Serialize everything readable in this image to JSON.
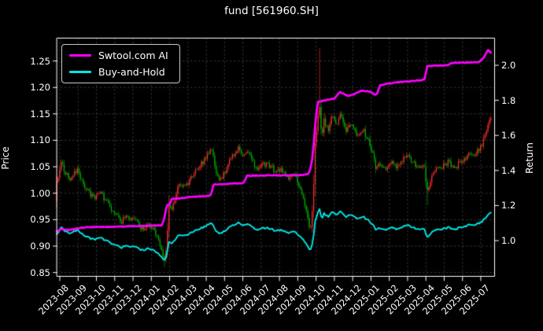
{
  "title": "fund [561960.SH]",
  "chart_data": {
    "type": "candlestick+line",
    "title": "fund [561960.SH]",
    "background": "#000000",
    "text_color": "#ffffff",
    "grid": true,
    "grid_color": "rgba(170,170,170,0.45)",
    "left_axis": {
      "label": "Price",
      "ticks": [
        0.85,
        0.9,
        0.95,
        1.0,
        1.05,
        1.1,
        1.15,
        1.2,
        1.25
      ],
      "range": [
        0.842,
        1.294
      ]
    },
    "right_axis": {
      "label": "Return",
      "ticks": [
        1.0,
        1.2,
        1.4,
        1.6,
        1.8,
        2.0
      ],
      "range": [
        0.794,
        2.157
      ]
    },
    "x_tick_labels": [
      "2023-08",
      "2023-09",
      "2023-10",
      "2023-11",
      "2023-12",
      "2024-01",
      "2024-02",
      "2024-03",
      "2024-04",
      "2024-05",
      "2024-06",
      "2024-07",
      "2024-08",
      "2024-09",
      "2024-10",
      "2024-11",
      "2024-12",
      "2025-01",
      "2025-02",
      "2025-03",
      "2025-04",
      "2025-05",
      "2025-06",
      "2025-07"
    ],
    "x_range_months": [
      -0.17,
      23.55
    ],
    "legend": [
      {
        "label": "Swtool.com AI",
        "color": "#ff00ff"
      },
      {
        "label": "Buy-and-Hold",
        "color": "#00e8e8"
      }
    ],
    "series": {
      "ai_return_anchors": [
        [
          -0.17,
          1.05
        ],
        [
          0.08,
          1.068
        ],
        [
          0.5,
          1.06
        ],
        [
          0.9,
          1.068
        ],
        [
          1.3,
          1.075
        ],
        [
          2.2,
          1.078
        ],
        [
          3.2,
          1.08
        ],
        [
          4.2,
          1.083
        ],
        [
          5.2,
          1.086
        ],
        [
          5.6,
          1.088
        ],
        [
          5.72,
          1.135
        ],
        [
          5.85,
          1.205
        ],
        [
          6.0,
          1.208
        ],
        [
          6.12,
          1.238
        ],
        [
          6.7,
          1.243
        ],
        [
          7.2,
          1.25
        ],
        [
          8.1,
          1.255
        ],
        [
          8.25,
          1.258
        ],
        [
          8.4,
          1.32
        ],
        [
          9.5,
          1.325
        ],
        [
          10.05,
          1.33
        ],
        [
          10.22,
          1.37
        ],
        [
          11.2,
          1.372
        ],
        [
          12.3,
          1.372
        ],
        [
          13.3,
          1.374
        ],
        [
          13.6,
          1.38
        ],
        [
          13.75,
          1.43
        ],
        [
          13.88,
          1.56
        ],
        [
          13.98,
          1.7
        ],
        [
          14.1,
          1.79
        ],
        [
          14.5,
          1.8
        ],
        [
          15.0,
          1.812
        ],
        [
          15.3,
          1.848
        ],
        [
          15.75,
          1.824
        ],
        [
          16.1,
          1.836
        ],
        [
          16.5,
          1.856
        ],
        [
          16.95,
          1.848
        ],
        [
          17.3,
          1.828
        ],
        [
          17.48,
          1.886
        ],
        [
          18.2,
          1.9
        ],
        [
          19.2,
          1.91
        ],
        [
          19.95,
          1.918
        ],
        [
          20.05,
          1.995
        ],
        [
          21.2,
          2.0
        ],
        [
          21.45,
          2.014
        ],
        [
          22.85,
          2.016
        ],
        [
          23.15,
          2.04
        ],
        [
          23.38,
          2.088
        ],
        [
          23.55,
          2.072
        ]
      ],
      "price_close_anchors": [
        [
          -0.17,
          1.02
        ],
        [
          0.08,
          1.058
        ],
        [
          0.3,
          1.035
        ],
        [
          0.6,
          1.028
        ],
        [
          0.95,
          1.045
        ],
        [
          1.3,
          1.015
        ],
        [
          1.6,
          1.0
        ],
        [
          1.9,
          0.99
        ],
        [
          2.2,
          1.0
        ],
        [
          2.5,
          0.988
        ],
        [
          2.8,
          0.97
        ],
        [
          3.1,
          0.958
        ],
        [
          3.35,
          0.945
        ],
        [
          3.6,
          0.96
        ],
        [
          3.9,
          0.952
        ],
        [
          4.2,
          0.945
        ],
        [
          4.5,
          0.932
        ],
        [
          4.8,
          0.94
        ],
        [
          5.1,
          0.93
        ],
        [
          5.35,
          0.915
        ],
        [
          5.55,
          0.895
        ],
        [
          5.7,
          0.872
        ],
        [
          5.82,
          0.892
        ],
        [
          5.95,
          0.975
        ],
        [
          6.15,
          0.972
        ],
        [
          6.5,
          1.02
        ],
        [
          6.8,
          1.01
        ],
        [
          7.2,
          1.03
        ],
        [
          7.6,
          1.05
        ],
        [
          7.9,
          1.062
        ],
        [
          8.3,
          1.085
        ],
        [
          8.55,
          1.032
        ],
        [
          8.85,
          1.028
        ],
        [
          9.15,
          1.052
        ],
        [
          9.45,
          1.07
        ],
        [
          9.7,
          1.085
        ],
        [
          10.0,
          1.075
        ],
        [
          10.25,
          1.08
        ],
        [
          10.55,
          1.058
        ],
        [
          10.85,
          1.048
        ],
        [
          11.15,
          1.055
        ],
        [
          11.5,
          1.052
        ],
        [
          11.8,
          1.04
        ],
        [
          12.1,
          1.045
        ],
        [
          12.45,
          1.028
        ],
        [
          12.75,
          1.035
        ],
        [
          13.05,
          1.018
        ],
        [
          13.35,
          0.988
        ],
        [
          13.55,
          0.948
        ],
        [
          13.68,
          0.93
        ],
        [
          13.82,
          0.975
        ],
        [
          13.96,
          1.1
        ],
        [
          14.18,
          1.17
        ],
        [
          14.3,
          1.1
        ],
        [
          14.45,
          1.14
        ],
        [
          14.65,
          1.118
        ],
        [
          14.85,
          1.152
        ],
        [
          15.05,
          1.128
        ],
        [
          15.35,
          1.148
        ],
        [
          15.65,
          1.118
        ],
        [
          15.95,
          1.132
        ],
        [
          16.25,
          1.112
        ],
        [
          16.55,
          1.12
        ],
        [
          16.85,
          1.098
        ],
        [
          17.05,
          1.082
        ],
        [
          17.25,
          1.048
        ],
        [
          17.55,
          1.056
        ],
        [
          17.85,
          1.048
        ],
        [
          18.15,
          1.06
        ],
        [
          18.45,
          1.048
        ],
        [
          18.75,
          1.065
        ],
        [
          19.0,
          1.075
        ],
        [
          19.3,
          1.058
        ],
        [
          19.6,
          1.048
        ],
        [
          19.9,
          1.055
        ],
        [
          20.08,
          1.002
        ],
        [
          20.35,
          1.04
        ],
        [
          20.65,
          1.046
        ],
        [
          20.95,
          1.052
        ],
        [
          21.25,
          1.06
        ],
        [
          21.5,
          1.044
        ],
        [
          21.8,
          1.056
        ],
        [
          22.1,
          1.066
        ],
        [
          22.4,
          1.072
        ],
        [
          22.7,
          1.076
        ],
        [
          22.95,
          1.082
        ],
        [
          23.2,
          1.105
        ],
        [
          23.4,
          1.132
        ],
        [
          23.55,
          1.14
        ]
      ],
      "buy_hold_reference_price": 0.985
    },
    "candles": {
      "count": 295,
      "up_color": "#ff3232",
      "down_color": "#00b300",
      "volatility": 0.005,
      "wick_events": [
        {
          "t": 5.7,
          "low": 0.86
        },
        {
          "t": 14.18,
          "high": 1.274
        },
        {
          "t": 20.08,
          "low": 0.978
        }
      ]
    },
    "line_colors": {
      "ai": "#ff00ff",
      "buy_hold": "#00e8e8"
    }
  }
}
